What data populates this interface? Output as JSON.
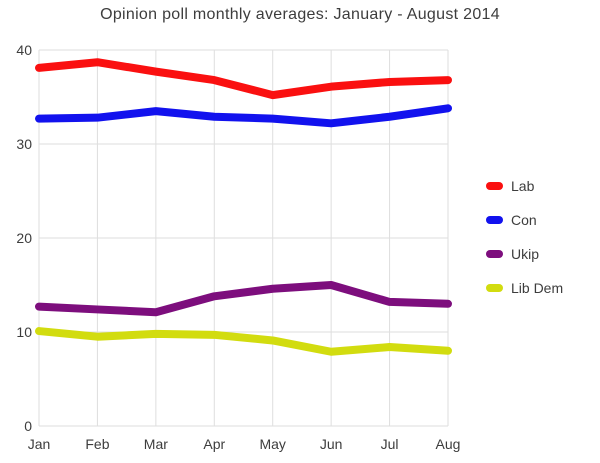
{
  "title": "Opinion poll monthly averages: January - August 2014",
  "colors": {
    "background": "#ffffff",
    "grid": "#dedede",
    "text": "#3d3d3d",
    "lab": "#fa1010",
    "con": "#1212ee",
    "ukip": "#7d0e7d",
    "libdem": "#d2dc0f"
  },
  "chart_data": {
    "type": "line",
    "title": "Opinion poll monthly averages: January - August 2014",
    "categories": [
      "Jan",
      "Feb",
      "Mar",
      "Apr",
      "May",
      "Jun",
      "Jul",
      "Aug"
    ],
    "series": [
      {
        "name": "Lab",
        "color": "#fa1010",
        "values": [
          38.1,
          38.7,
          37.7,
          36.8,
          35.2,
          36.1,
          36.6,
          36.8
        ]
      },
      {
        "name": "Con",
        "color": "#1212ee",
        "values": [
          32.7,
          32.8,
          33.5,
          32.9,
          32.7,
          32.2,
          32.9,
          33.8
        ]
      },
      {
        "name": "Ukip",
        "color": "#7d0e7d",
        "values": [
          12.7,
          12.4,
          12.1,
          13.8,
          14.6,
          15.0,
          13.2,
          13.0
        ]
      },
      {
        "name": "Lib Dem",
        "color": "#d2dc0f",
        "values": [
          10.1,
          9.5,
          9.8,
          9.7,
          9.1,
          7.9,
          8.4,
          8.0
        ]
      }
    ],
    "xlabel": "",
    "ylabel": "",
    "ylim": [
      0,
      40
    ],
    "yticks": [
      0,
      10,
      20,
      30,
      40
    ],
    "grid": true,
    "line_width": 8,
    "legend_position": "right"
  }
}
